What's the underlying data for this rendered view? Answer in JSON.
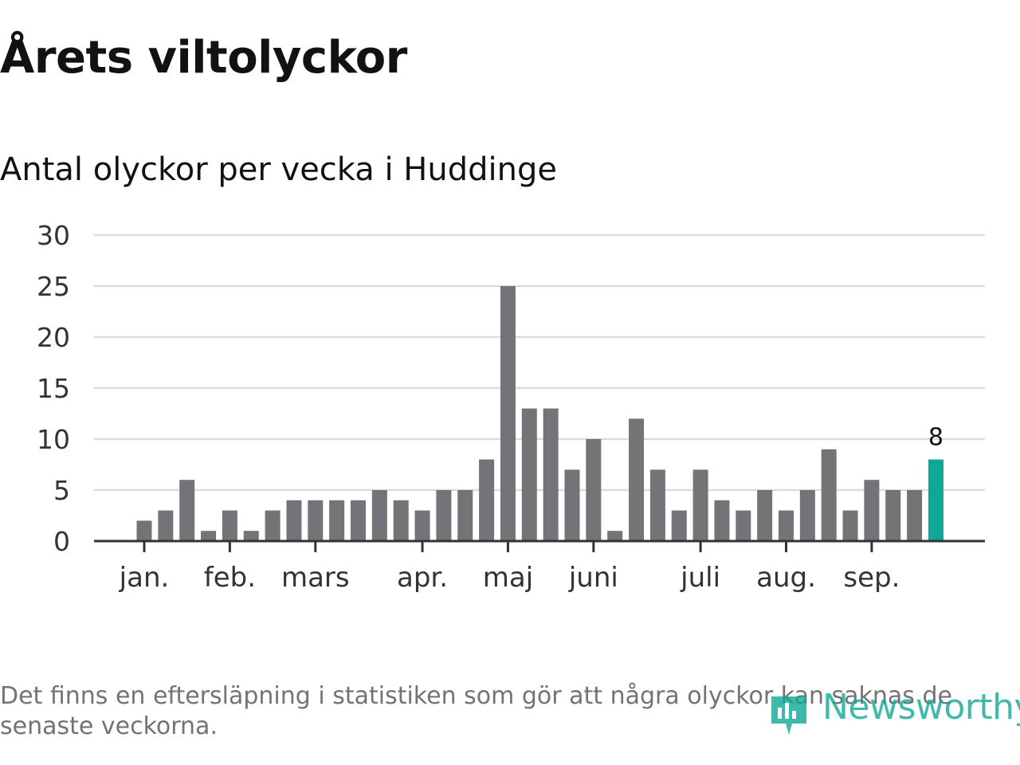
{
  "header": {
    "title": "Årets viltolyckor",
    "subtitle": "Antal olyckor per vecka i Huddinge"
  },
  "footer": {
    "note": "Det finns en eftersläpning i statistiken som gör att några olyckor kan saknas de senaste veckorna.",
    "brand": "Newsworthy",
    "brand_icon": "newsworthy-logo-icon"
  },
  "colors": {
    "bar": "#747378",
    "highlight": "#0fa896",
    "grid": "#dcdcdc",
    "axis": "#333333"
  },
  "chart_data": {
    "type": "bar",
    "title": "Antal olyckor per vecka i Huddinge",
    "xlabel": "",
    "ylabel": "",
    "ylim": [
      0,
      30
    ],
    "yticks": [
      0,
      5,
      10,
      15,
      20,
      25,
      30
    ],
    "grid": true,
    "legend": "none",
    "values": [
      2,
      3,
      6,
      1,
      3,
      1,
      3,
      4,
      4,
      4,
      4,
      5,
      4,
      3,
      5,
      5,
      8,
      25,
      13,
      13,
      7,
      10,
      1,
      12,
      7,
      3,
      7,
      4,
      3,
      5,
      3,
      5,
      9,
      3,
      6,
      5,
      5,
      8
    ],
    "highlight_index": 37,
    "highlight_label": "8",
    "month_labels": [
      {
        "label": "jan.",
        "week": 1
      },
      {
        "label": "feb.",
        "week": 5
      },
      {
        "label": "mars",
        "week": 9
      },
      {
        "label": "apr.",
        "week": 14
      },
      {
        "label": "maj",
        "week": 18
      },
      {
        "label": "juni",
        "week": 22
      },
      {
        "label": "juli",
        "week": 27
      },
      {
        "label": "aug.",
        "week": 31
      },
      {
        "label": "sep.",
        "week": 35
      }
    ]
  }
}
